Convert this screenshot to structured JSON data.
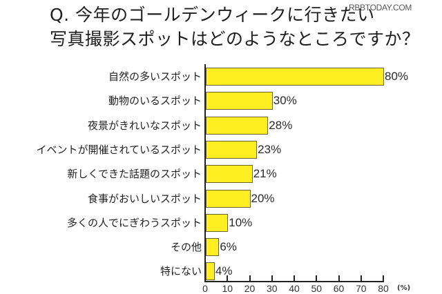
{
  "title": {
    "line1": "Q. 今年のゴールデンウィークに行きたい",
    "line2": "写真撮影スポットはどのようなところですか？"
  },
  "watermark": "RBBTODAY.COM",
  "colors": {
    "bar_fill": "#ffee22",
    "bar_border": "#6b6430",
    "axis": "#222222",
    "text": "#222222"
  },
  "axis": {
    "ticks": [
      "0",
      "10",
      "20",
      "30",
      "40",
      "50",
      "60",
      "70",
      "80"
    ],
    "unit": "(%)"
  },
  "bars": [
    {
      "label": "自然の多いスポット",
      "value": 80,
      "value_label": "80%"
    },
    {
      "label": "動物のいるスポット",
      "value": 30,
      "value_label": "30%"
    },
    {
      "label": "夜景がきれいなスポット",
      "value": 28,
      "value_label": "28%"
    },
    {
      "label": "イベントが開催されているスポット",
      "value": 23,
      "value_label": "23%"
    },
    {
      "label": "新しくできた話題のスポット",
      "value": 21,
      "value_label": "21%"
    },
    {
      "label": "食事がおいしいスポット",
      "value": 20,
      "value_label": "20%"
    },
    {
      "label": "多くの人でにぎわうスポット",
      "value": 10,
      "value_label": "10%"
    },
    {
      "label": "その他",
      "value": 6,
      "value_label": "6%"
    },
    {
      "label": "特にない",
      "value": 4,
      "value_label": "4%"
    }
  ],
  "chart_data": {
    "type": "bar",
    "orientation": "horizontal",
    "title": "Q. 今年のゴールデンウィークに行きたい写真撮影スポットはどのようなところですか？",
    "categories": [
      "自然の多いスポット",
      "動物のいるスポット",
      "夜景がきれいなスポット",
      "イベントが開催されているスポット",
      "新しくできた話題のスポット",
      "食事がおいしいスポット",
      "多くの人でにぎわうスポット",
      "その他",
      "特にない"
    ],
    "values": [
      80,
      30,
      28,
      23,
      21,
      20,
      10,
      6,
      4
    ],
    "data_labels": [
      "80%",
      "30%",
      "28%",
      "23%",
      "21%",
      "20%",
      "10%",
      "6%",
      "4%"
    ],
    "xlabel": "(%)",
    "ylabel": "",
    "xlim": [
      0,
      80
    ],
    "xticks": [
      0,
      10,
      20,
      30,
      40,
      50,
      60,
      70,
      80
    ],
    "grid": false,
    "legend": null,
    "bar_color": "#ffee22"
  }
}
